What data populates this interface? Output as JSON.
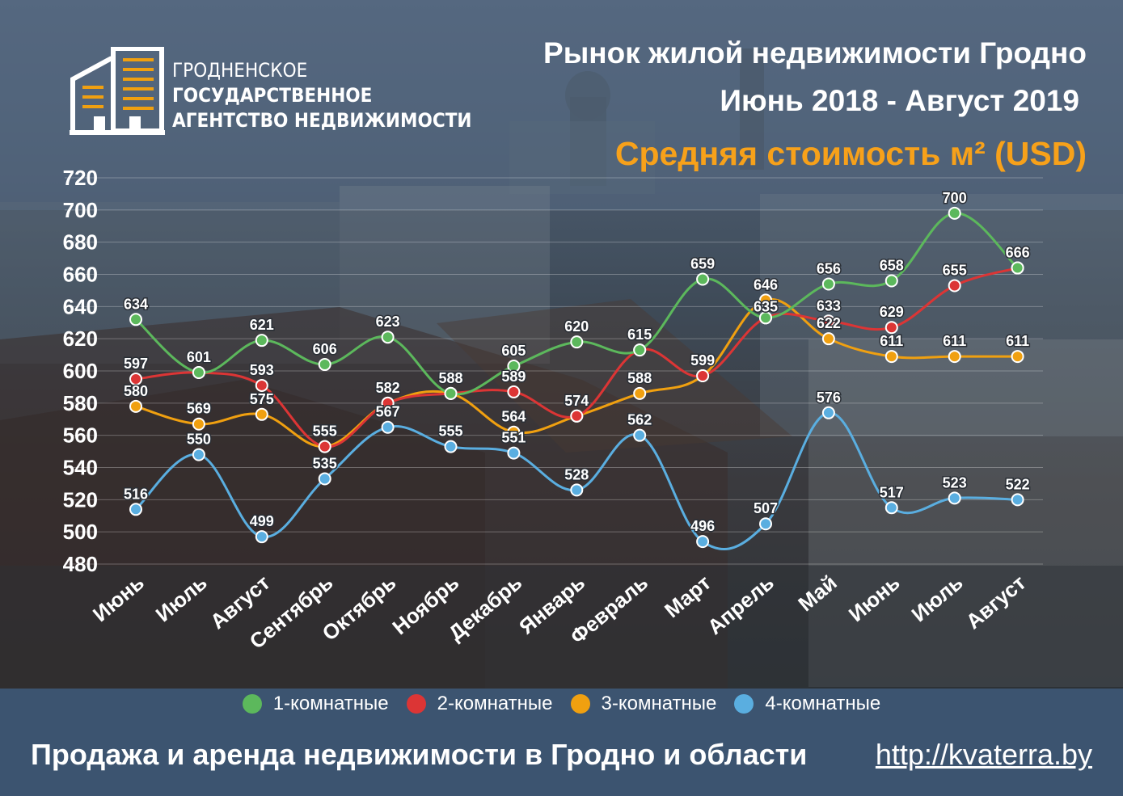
{
  "header": {
    "logo_line1": "ГРОДНЕНСКОЕ",
    "logo_line2": "ГОСУДАРСТВЕННОЕ",
    "logo_line3": "АГЕНТСТВО НЕДВИЖИМОСТИ",
    "title_line1": "Рынок жилой недвижимости Гродно",
    "title_line2": "Июнь 2018 - Август 2019",
    "title_line3": "Средняя стоимость м² (USD)"
  },
  "footer": {
    "tagline": "Продажа и аренда недвижимости в Гродно и области",
    "link": "http://kvaterra.by"
  },
  "colors": {
    "series1": "#5cb85c",
    "series2": "#dc3535",
    "series3": "#f0a010",
    "series4": "#5aaee0",
    "title_accent": "#f7a11a",
    "footer_bg": "#3c5470"
  },
  "chart_data": {
    "type": "line",
    "title": "Средняя стоимость м² (USD)",
    "categories": [
      "Июнь",
      "Июль",
      "Август",
      "Сентябрь",
      "Октябрь",
      "Ноябрь",
      "Декабрь",
      "Январь",
      "Февраль",
      "Март",
      "Апрель",
      "Май",
      "Июнь",
      "Июль",
      "Август"
    ],
    "ylim": [
      480,
      720
    ],
    "yticks": [
      480,
      500,
      520,
      540,
      560,
      580,
      600,
      620,
      640,
      660,
      680,
      700,
      720
    ],
    "grid": true,
    "legend": "bottom",
    "series": [
      {
        "name": "1-комнатные",
        "color": "#5cb85c",
        "values": [
          634,
          601,
          621,
          606,
          623,
          588,
          605,
          620,
          615,
          659,
          635,
          656,
          658,
          700,
          666
        ]
      },
      {
        "name": "2-комнатные",
        "color": "#dc3535",
        "values": [
          597,
          601,
          593,
          555,
          582,
          588,
          589,
          574,
          615,
          599,
          635,
          633,
          629,
          655,
          666
        ]
      },
      {
        "name": "3-комнатные",
        "color": "#f0a010",
        "values": [
          580,
          569,
          575,
          555,
          582,
          588,
          564,
          574,
          588,
          599,
          646,
          622,
          611,
          611,
          611
        ]
      },
      {
        "name": "4-комнатные",
        "color": "#5aaee0",
        "values": [
          516,
          550,
          499,
          535,
          567,
          555,
          551,
          528,
          562,
          496,
          507,
          576,
          517,
          523,
          522
        ]
      }
    ],
    "labels": [
      [
        "634",
        "601",
        "621",
        "606",
        "623",
        "",
        "605",
        "620",
        "",
        "659",
        "",
        "656",
        "658",
        "700",
        ""
      ],
      [
        "597",
        "",
        "593",
        "",
        "",
        "",
        "589",
        "",
        "615",
        "",
        "",
        "633",
        "629",
        "655",
        "666"
      ],
      [
        "580",
        "569",
        "575",
        "555",
        "582",
        "588",
        "564",
        "574",
        "588",
        "599",
        "646",
        "622",
        "611",
        "611",
        "611"
      ],
      [
        "516",
        "550",
        "499",
        "535",
        "567",
        "555",
        "551",
        "528",
        "562",
        "496",
        "507",
        "576",
        "517",
        "523",
        "522"
      ]
    ],
    "labels_extra": [
      {
        "series": 0,
        "index": 10,
        "text": "635"
      }
    ]
  }
}
